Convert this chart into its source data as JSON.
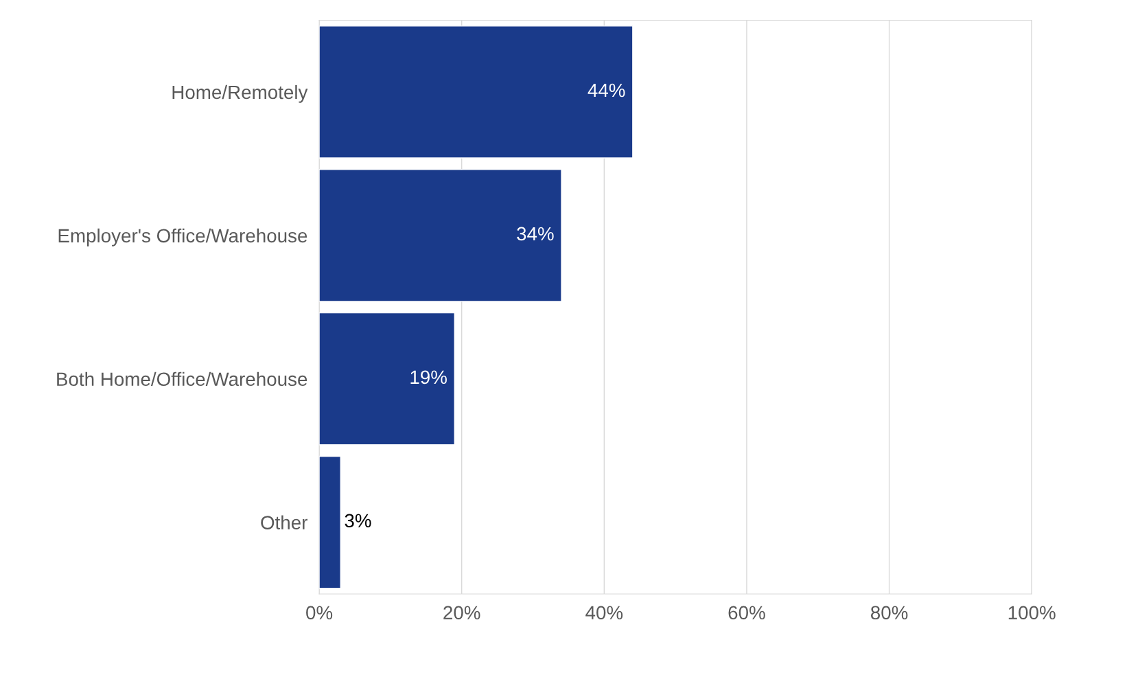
{
  "chart_data": {
    "type": "bar",
    "orientation": "horizontal",
    "categories": [
      "Home/Remotely",
      "Employer's Office/Warehouse",
      "Both Home/Office/Warehouse",
      "Other"
    ],
    "values": [
      44,
      34,
      19,
      3
    ],
    "value_labels": [
      "44%",
      "34%",
      "19%",
      "3%"
    ],
    "color": "#1a3a8a",
    "xlim": [
      0,
      100
    ],
    "xticks": [
      {
        "value": 0,
        "label": "0%"
      },
      {
        "value": 20,
        "label": "20%"
      },
      {
        "value": 40,
        "label": "40%"
      },
      {
        "value": 60,
        "label": "60%"
      },
      {
        "value": 80,
        "label": "80%"
      },
      {
        "value": 100,
        "label": "100%"
      }
    ],
    "grid": "x"
  }
}
